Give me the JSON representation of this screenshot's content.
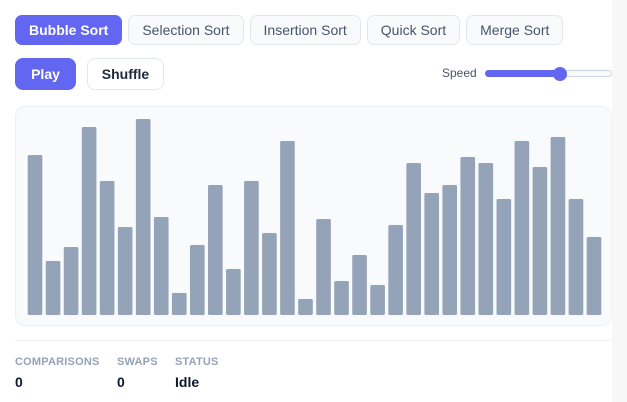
{
  "algorithms": [
    {
      "label": "Bubble Sort",
      "active": true
    },
    {
      "label": "Selection Sort",
      "active": false
    },
    {
      "label": "Insertion Sort",
      "active": false
    },
    {
      "label": "Quick Sort",
      "active": false
    },
    {
      "label": "Merge Sort",
      "active": false
    }
  ],
  "controls": {
    "play_label": "Play",
    "shuffle_label": "Shuffle",
    "speed_label": "Speed",
    "speed_value": 0.6
  },
  "bars": [
    80,
    27,
    34,
    94,
    67,
    44,
    98,
    49,
    11,
    35,
    65,
    23,
    67,
    41,
    87,
    8,
    48,
    17,
    30,
    15,
    45,
    76,
    61,
    65,
    79,
    76,
    58,
    87,
    74,
    89,
    58,
    39
  ],
  "bar_color": "#94a3b8",
  "accent_color": "#6366f1",
  "stats": {
    "comparisons_label": "COMPARISONS",
    "comparisons": "0",
    "swaps_label": "SWAPS",
    "swaps": "0",
    "status_label": "STATUS",
    "status": "Idle"
  }
}
